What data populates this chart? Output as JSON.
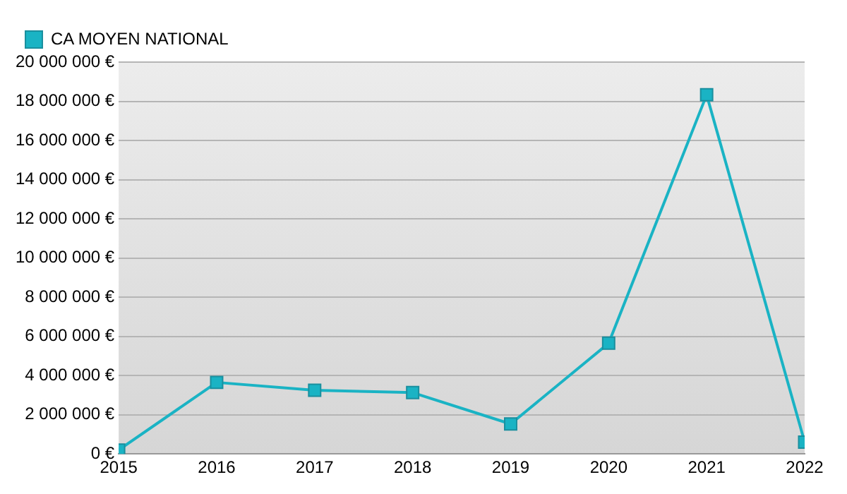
{
  "chart_data": {
    "type": "line",
    "x": [
      2015,
      2016,
      2017,
      2018,
      2019,
      2020,
      2021,
      2022
    ],
    "series": [
      {
        "name": "CA MOYEN NATIONAL",
        "color": "#1ab3c4",
        "values": [
          200000,
          3650000,
          3250000,
          3130000,
          1530000,
          5650000,
          18330000,
          600000
        ]
      }
    ],
    "xlim": [
      2015,
      2022
    ],
    "xticks": [
      2015,
      2016,
      2017,
      2018,
      2019,
      2020,
      2021,
      2022
    ],
    "ylim": [
      0,
      20000000
    ],
    "yticks": [
      {
        "value": 0,
        "label": "0 €"
      },
      {
        "value": 2000000,
        "label": "2 000 000 €"
      },
      {
        "value": 4000000,
        "label": "4 000 000 €"
      },
      {
        "value": 6000000,
        "label": "6 000 000 €"
      },
      {
        "value": 8000000,
        "label": "8 000 000 €"
      },
      {
        "value": 10000000,
        "label": "10 000 000 €"
      },
      {
        "value": 12000000,
        "label": "12 000 000 €"
      },
      {
        "value": 14000000,
        "label": "14 000 000 €"
      },
      {
        "value": 16000000,
        "label": "16 000 000 €"
      },
      {
        "value": 18000000,
        "label": "18 000 000 €"
      },
      {
        "value": 20000000,
        "label": "20 000 000 €"
      }
    ],
    "grid": "y",
    "legend": "top left",
    "marker": "square",
    "line_style": "solid"
  }
}
